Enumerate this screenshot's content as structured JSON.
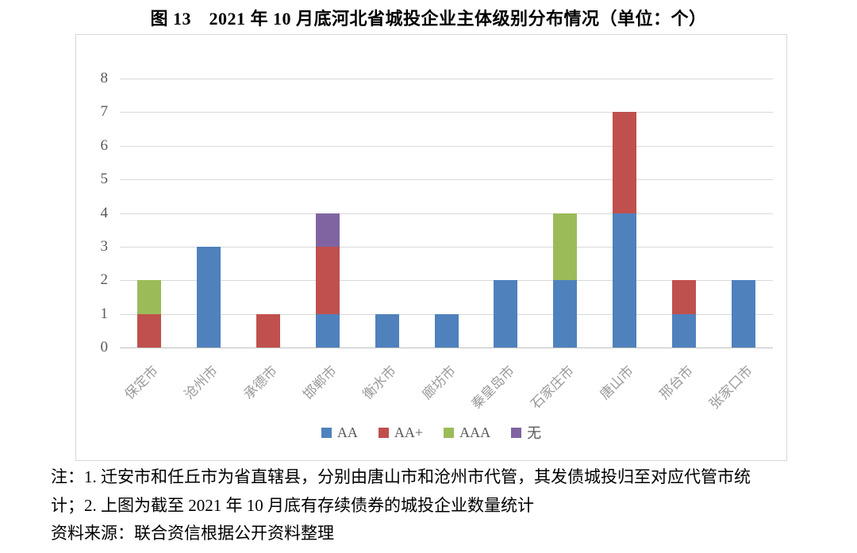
{
  "title": "图 13　2021 年 10 月底河北省城投企业主体级别分布情况（单位：个）",
  "chart_data": {
    "type": "bar",
    "stacked": true,
    "title": "图 13　2021 年 10 月底河北省城投企业主体级别分布情况（单位：个）",
    "xlabel": "",
    "ylabel": "",
    "categories": [
      "保定市",
      "沧州市",
      "承德市",
      "邯郸市",
      "衡水市",
      "廊坊市",
      "秦皇岛市",
      "石家庄市",
      "唐山市",
      "邢台市",
      "张家口市"
    ],
    "series": [
      {
        "name": "AA",
        "color": "#4F81BD",
        "values": [
          0,
          3,
          0,
          1,
          1,
          1,
          2,
          2,
          4,
          1,
          2
        ]
      },
      {
        "name": "AA+",
        "color": "#C0504D",
        "values": [
          1,
          0,
          1,
          2,
          0,
          0,
          0,
          0,
          3,
          1,
          0
        ]
      },
      {
        "name": "AAA",
        "color": "#9BBB59",
        "values": [
          1,
          0,
          0,
          0,
          0,
          0,
          0,
          2,
          0,
          0,
          0
        ]
      },
      {
        "name": "无",
        "color": "#8064A2",
        "values": [
          0,
          0,
          0,
          1,
          0,
          0,
          0,
          0,
          0,
          0,
          0
        ]
      }
    ],
    "totals": [
      2,
      3,
      1,
      4,
      1,
      1,
      2,
      4,
      7,
      2,
      2
    ],
    "ylim": [
      0,
      8
    ],
    "ytick_step": 1,
    "yticks": [
      0,
      1,
      2,
      3,
      4,
      5,
      6,
      7,
      8
    ],
    "grid": "horizontal",
    "legend_position": "bottom"
  },
  "colors": {
    "aa_blue": "#4F81BD",
    "aa_plus_red": "#C0504D",
    "aaa_green": "#9BBB59",
    "none_purple": "#8064A2",
    "gridline": "#D9D9D9",
    "axis_text": "#595959"
  },
  "notes": {
    "line1": "注：1. 迁安市和任丘市为省直辖县，分别由唐山市和沧州市代管，其发债城投归至对应代管市统",
    "line2": "计；2. 上图为截至 2021 年 10 月底有存续债券的城投企业数量统计",
    "source": "资料来源：联合资信根据公开资料整理"
  }
}
